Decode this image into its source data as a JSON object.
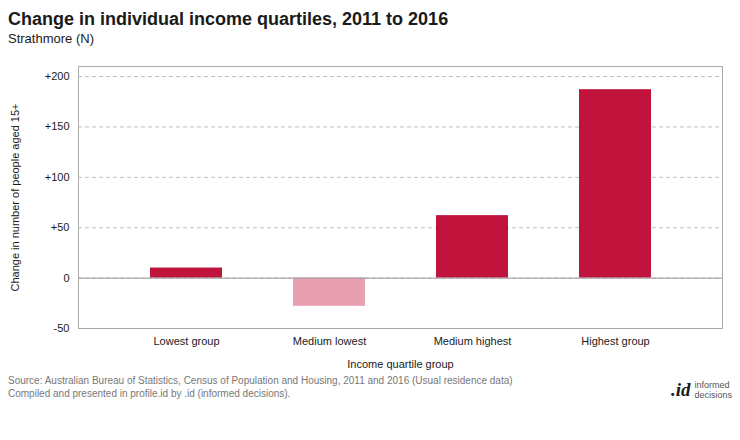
{
  "chart_data": {
    "type": "bar",
    "title": "Change in individual income quartiles, 2011 to 2016",
    "subtitle": "Strathmore (N)",
    "xlabel": "Income quartile group",
    "ylabel": "Change in number of people aged 15+",
    "categories": [
      "Lowest group",
      "Medium lowest",
      "Medium highest",
      "Highest group"
    ],
    "values": [
      10,
      -28,
      62,
      187
    ],
    "colors": [
      "#c0143c",
      "#e8a0b0",
      "#c0143c",
      "#c0143c"
    ],
    "ylim": [
      -50,
      210
    ],
    "yticks": [
      -50,
      0,
      {
        "value": 50,
        "label": "+50"
      },
      {
        "value": 100,
        "label": "+100"
      },
      {
        "value": 150,
        "label": "+150"
      },
      {
        "value": 200,
        "label": "+200"
      }
    ],
    "grid": true,
    "annotations": [
      "Source: Australian Bureau of Statistics, Census of Population and Housing, 2011 and 2016 (Usual residence data)\nCompiled and presented in profile.id by .id (informed decisions).",
      ".id",
      "informed\ndecisions"
    ]
  }
}
